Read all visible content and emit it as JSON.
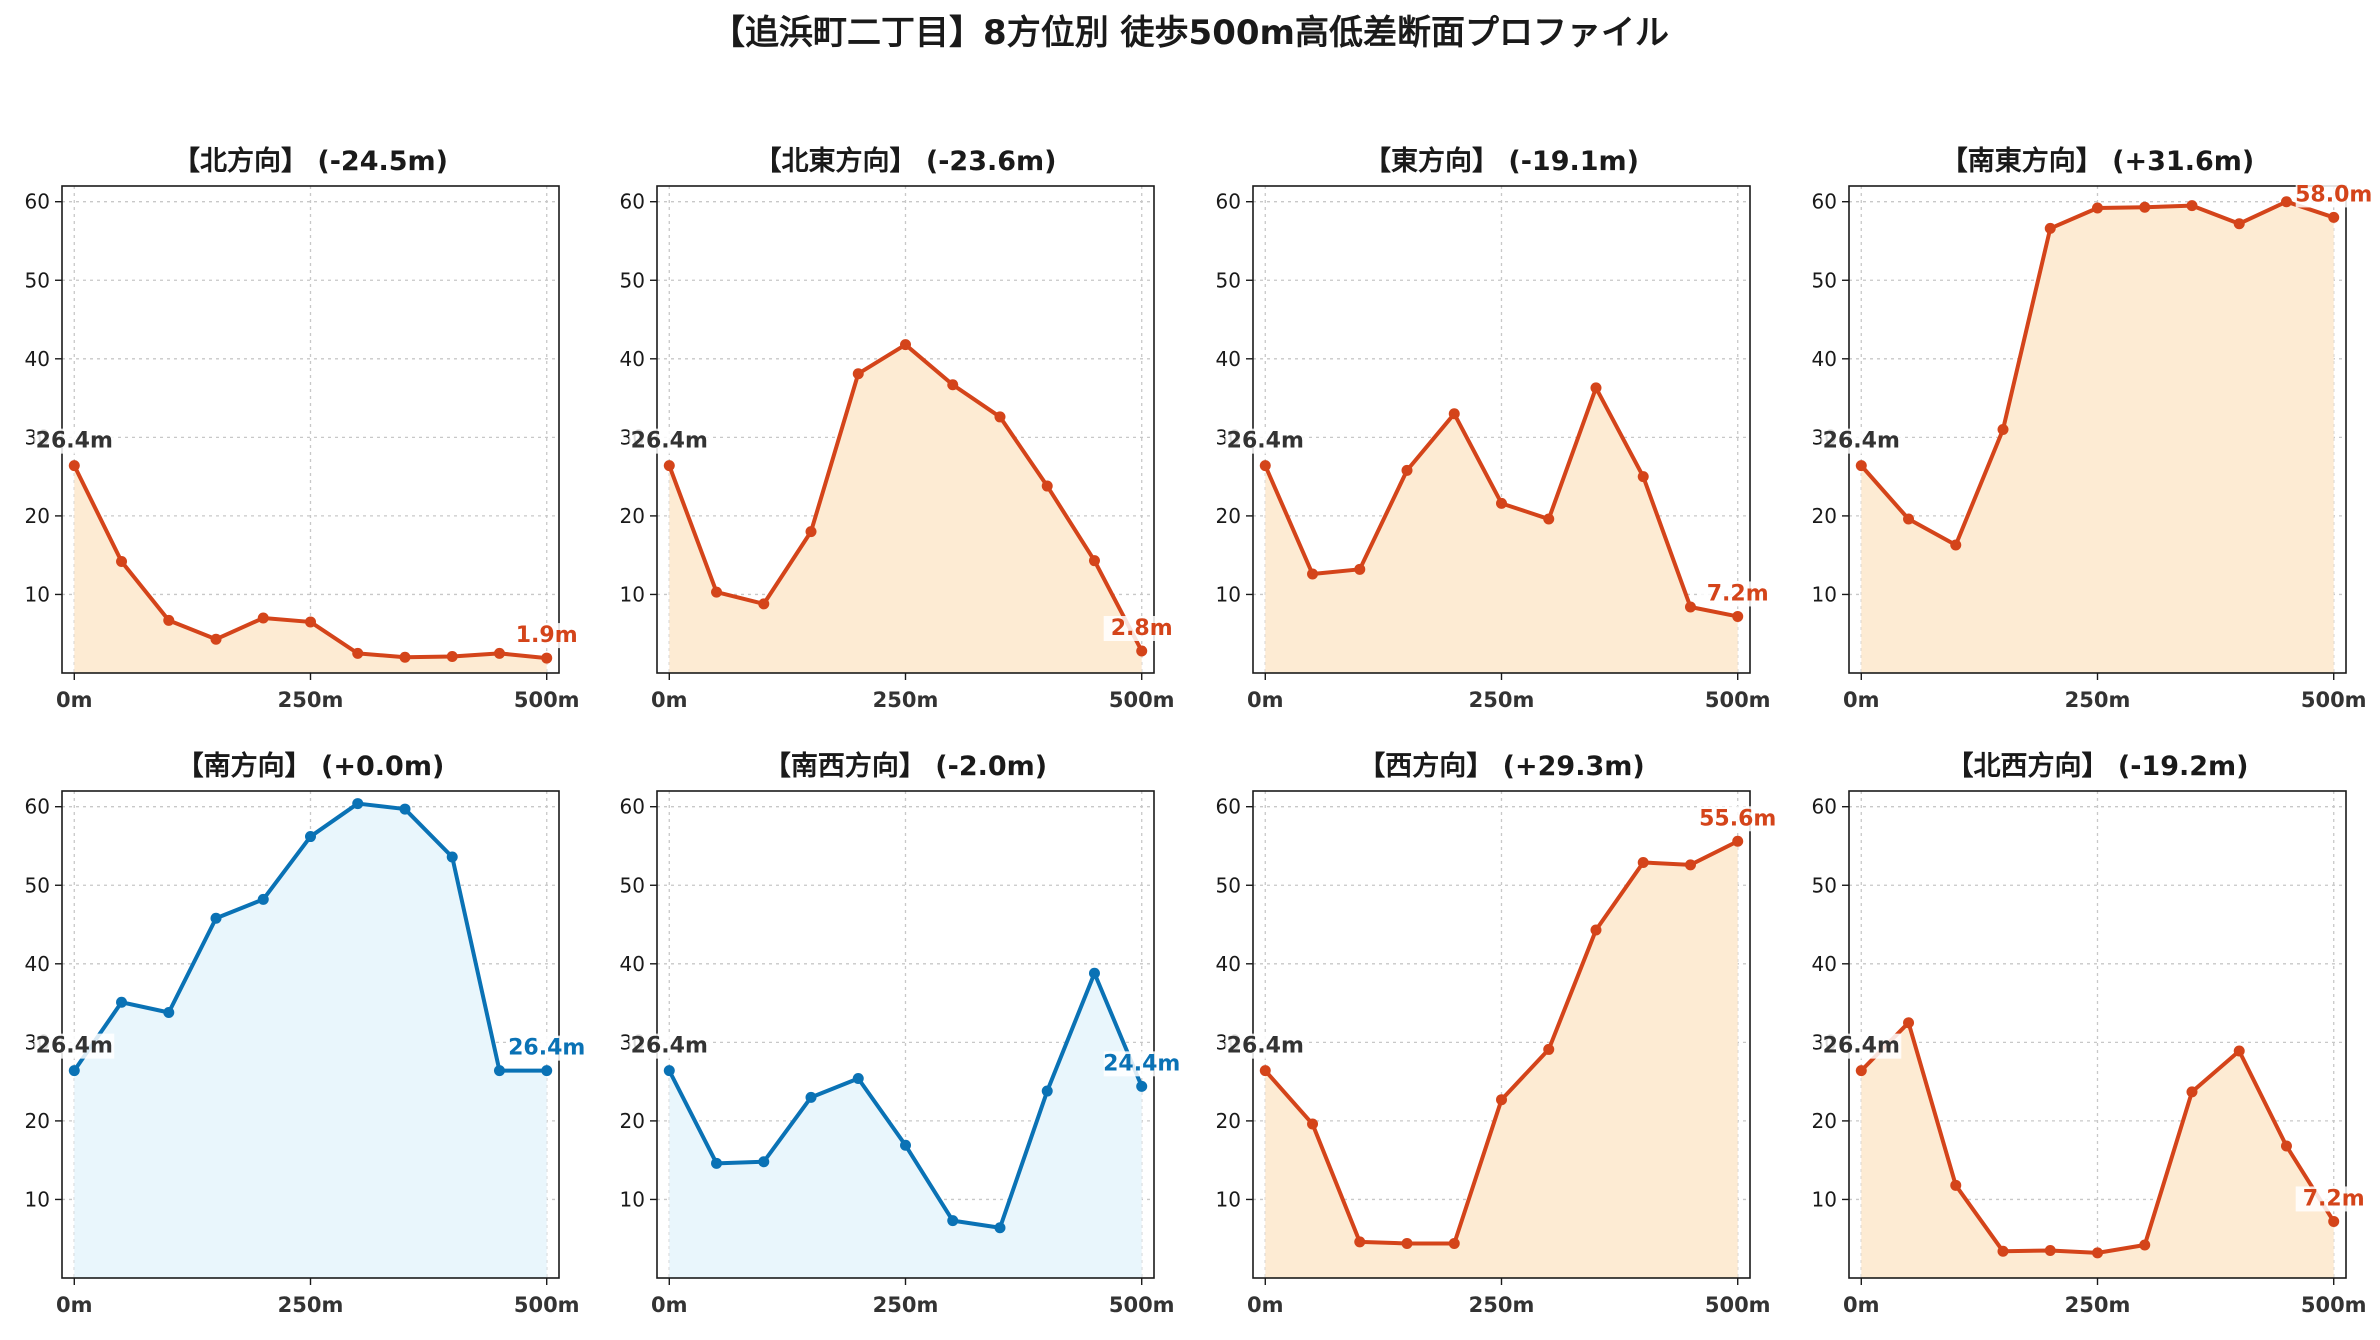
{
  "title": "【追浜町二丁目】8方位別 徒歩500m高低差断面プロファイル",
  "colors": {
    "down_line": "#d4441a",
    "down_fill": "#fdebd3",
    "up_line": "#0a72b5",
    "up_fill": "#e9f6fc",
    "start_label": "#333333"
  },
  "chart_data": [
    {
      "type": "area",
      "title": "【北方向】 (-24.5m)",
      "trend": "down",
      "x": [
        0,
        50,
        100,
        150,
        200,
        250,
        300,
        350,
        400,
        450,
        500
      ],
      "values": [
        26.4,
        14.2,
        6.7,
        4.3,
        7.0,
        6.5,
        2.5,
        2.0,
        2.1,
        2.5,
        1.9
      ],
      "xticks": [
        "0m",
        "250m",
        "500m"
      ],
      "yticks": [
        "10",
        "20",
        "30",
        "40",
        "50",
        "60"
      ],
      "ylim": [
        0,
        62
      ],
      "start_label": "26.4m",
      "end_label": "1.9m",
      "grid": true
    },
    {
      "type": "area",
      "title": "【北東方向】 (-23.6m)",
      "trend": "down",
      "x": [
        0,
        50,
        100,
        150,
        200,
        250,
        300,
        350,
        400,
        450,
        500
      ],
      "values": [
        26.4,
        10.3,
        8.8,
        18.0,
        38.1,
        41.8,
        36.7,
        32.6,
        23.8,
        14.3,
        2.8
      ],
      "xticks": [
        "0m",
        "250m",
        "500m"
      ],
      "yticks": [
        "10",
        "20",
        "30",
        "40",
        "50",
        "60"
      ],
      "ylim": [
        0,
        62
      ],
      "start_label": "26.4m",
      "end_label": "2.8m",
      "grid": true
    },
    {
      "type": "area",
      "title": "【東方向】 (-19.1m)",
      "trend": "down",
      "x": [
        0,
        50,
        100,
        150,
        200,
        250,
        300,
        350,
        400,
        450,
        500
      ],
      "values": [
        26.4,
        12.6,
        13.2,
        25.8,
        33.0,
        21.6,
        19.6,
        36.3,
        25.0,
        8.4,
        7.2
      ],
      "xticks": [
        "0m",
        "250m",
        "500m"
      ],
      "yticks": [
        "10",
        "20",
        "30",
        "40",
        "50",
        "60"
      ],
      "ylim": [
        0,
        62
      ],
      "start_label": "26.4m",
      "end_label": "7.2m",
      "grid": true
    },
    {
      "type": "area",
      "title": "【南東方向】 (+31.6m)",
      "trend": "down",
      "x": [
        0,
        50,
        100,
        150,
        200,
        250,
        300,
        350,
        400,
        450,
        500
      ],
      "values": [
        26.4,
        19.6,
        16.3,
        31.0,
        56.6,
        59.2,
        59.3,
        59.5,
        57.2,
        60.0,
        58.0
      ],
      "xticks": [
        "0m",
        "250m",
        "500m"
      ],
      "yticks": [
        "10",
        "20",
        "30",
        "40",
        "50",
        "60"
      ],
      "ylim": [
        0,
        62
      ],
      "start_label": "26.4m",
      "end_label": "58.0m",
      "grid": true
    },
    {
      "type": "area",
      "title": "【南方向】 (+0.0m)",
      "trend": "up",
      "x": [
        0,
        50,
        100,
        150,
        200,
        250,
        300,
        350,
        400,
        450,
        500
      ],
      "values": [
        26.4,
        35.1,
        33.8,
        45.8,
        48.2,
        56.2,
        60.4,
        59.7,
        53.6,
        26.4,
        26.4
      ],
      "xticks": [
        "0m",
        "250m",
        "500m"
      ],
      "yticks": [
        "10",
        "20",
        "30",
        "40",
        "50",
        "60"
      ],
      "ylim": [
        0,
        62
      ],
      "start_label": "26.4m",
      "end_label": "26.4m",
      "grid": true
    },
    {
      "type": "area",
      "title": "【南西方向】 (-2.0m)",
      "trend": "up",
      "x": [
        0,
        50,
        100,
        150,
        200,
        250,
        300,
        350,
        400,
        450,
        500
      ],
      "values": [
        26.4,
        14.6,
        14.8,
        23.0,
        25.4,
        16.9,
        7.3,
        6.4,
        23.8,
        38.8,
        24.4
      ],
      "xticks": [
        "0m",
        "250m",
        "500m"
      ],
      "yticks": [
        "10",
        "20",
        "30",
        "40",
        "50",
        "60"
      ],
      "ylim": [
        0,
        62
      ],
      "start_label": "26.4m",
      "end_label": "24.4m",
      "grid": true
    },
    {
      "type": "area",
      "title": "【西方向】 (+29.3m)",
      "trend": "down",
      "x": [
        0,
        50,
        100,
        150,
        200,
        250,
        300,
        350,
        400,
        450,
        500
      ],
      "values": [
        26.4,
        19.6,
        4.6,
        4.4,
        4.4,
        22.7,
        29.1,
        44.3,
        52.9,
        52.6,
        55.6
      ],
      "xticks": [
        "0m",
        "250m",
        "500m"
      ],
      "yticks": [
        "10",
        "20",
        "30",
        "40",
        "50",
        "60"
      ],
      "ylim": [
        0,
        62
      ],
      "start_label": "26.4m",
      "end_label": "55.6m",
      "grid": true
    },
    {
      "type": "area",
      "title": "【北西方向】 (-19.2m)",
      "trend": "down",
      "x": [
        0,
        50,
        100,
        150,
        200,
        250,
        300,
        350,
        400,
        450,
        500
      ],
      "values": [
        26.4,
        32.5,
        11.8,
        3.4,
        3.5,
        3.2,
        4.2,
        23.7,
        28.9,
        16.8,
        7.2
      ],
      "xticks": [
        "0m",
        "250m",
        "500m"
      ],
      "yticks": [
        "10",
        "20",
        "30",
        "40",
        "50",
        "60"
      ],
      "ylim": [
        0,
        62
      ],
      "start_label": "26.4m",
      "end_label": "7.2m",
      "grid": true
    }
  ]
}
